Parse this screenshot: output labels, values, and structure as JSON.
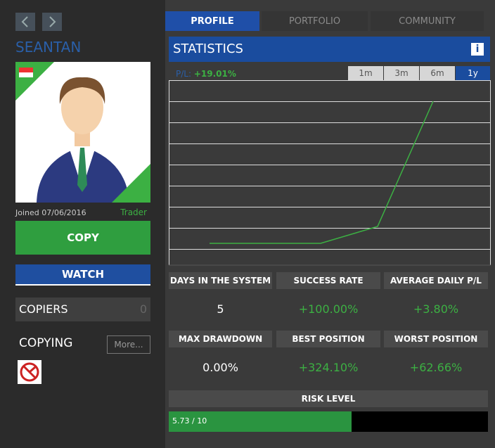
{
  "sidebar": {
    "username": "SEANTAN",
    "joined": "Joined 07/06/2016",
    "role": "Trader",
    "copy_button": "COPY",
    "watch_button": "WATCH",
    "copiers": {
      "label": "COPIERS",
      "count": "0"
    },
    "copying": {
      "label": "COPYING",
      "more_button": "More..."
    }
  },
  "tabs": [
    "PROFILE",
    "PORTFOLIO",
    "COMMUNITY"
  ],
  "statistics": {
    "title": "STATISTICS",
    "pl_label": "P/L:",
    "pl_value": "+19.01%",
    "periods": [
      "1m",
      "3m",
      "6m",
      "1y"
    ],
    "stats": [
      {
        "label": "DAYS IN THE SYSTEM",
        "value": "5"
      },
      {
        "label": "SUCCESS RATE",
        "value": "+100.00%"
      },
      {
        "label": "AVERAGE DAILY P/L",
        "value": "+3.80%"
      },
      {
        "label": "MAX DRAWDOWN",
        "value": "0.00%"
      },
      {
        "label": "BEST POSITION",
        "value": "+324.10%"
      },
      {
        "label": "WORST POSITION",
        "value": "+62.66%"
      }
    ],
    "risk_level": {
      "label": "RISK LEVEL",
      "value_label": "5.73 / 10",
      "value": 5.73,
      "max": 10
    }
  }
}
